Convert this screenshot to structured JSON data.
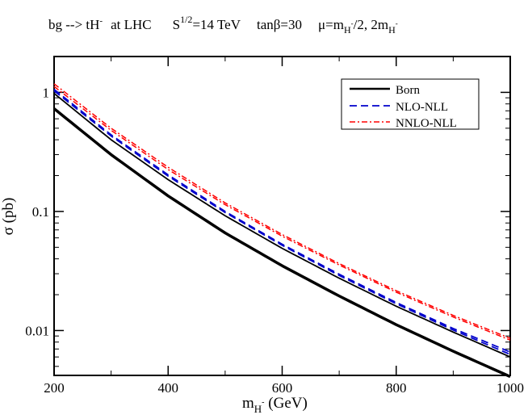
{
  "chart_data": {
    "type": "line",
    "title": {
      "process": "bg --> tH",
      "process_sup": "-",
      "collider": "at  LHC",
      "energy_base": "S",
      "energy_sup": "1/2",
      "energy_value": "=14 TeV",
      "tanb": "tanβ=30",
      "scale_a": "μ=m",
      "scale_a_sub": "H",
      "scale_a_subsup": "-",
      "scale_b": "/2, 2m",
      "scale_b_sub": "H",
      "scale_b_subsup": "-"
    },
    "xlabel": {
      "base": "m",
      "sub": "H",
      "subsup": "-",
      "unit": " (GeV)"
    },
    "ylabel": "σ  (pb)",
    "x_scale": "linear",
    "y_scale": "log",
    "xlim": [
      200,
      1000
    ],
    "ylim": [
      0.0042,
      2.0
    ],
    "x_ticks": [
      200,
      400,
      600,
      800,
      1000
    ],
    "x_tick_labels": [
      "200",
      "400",
      "600",
      "800",
      "1000"
    ],
    "y_ticks": [
      0.01,
      0.1,
      1
    ],
    "y_tick_labels": [
      "0.01",
      "0.1",
      "1"
    ],
    "legend_position": "top-right",
    "x": [
      200,
      300,
      400,
      500,
      600,
      700,
      800,
      900,
      1000
    ],
    "series": [
      {
        "name": "Born",
        "scale": "m_H/2",
        "legend": "Born",
        "color": "#000000",
        "style": "solid-thick",
        "values": [
          0.73,
          0.3,
          0.135,
          0.066,
          0.035,
          0.0195,
          0.0112,
          0.0067,
          0.0041
        ]
      },
      {
        "name": "Born",
        "scale": "2m_H",
        "legend": "",
        "color": "#000000",
        "style": "solid",
        "values": [
          0.98,
          0.4,
          0.185,
          0.092,
          0.049,
          0.0275,
          0.016,
          0.0097,
          0.006
        ]
      },
      {
        "name": "NLO-NLL",
        "scale": "m_H/2",
        "legend": "NLO-NLL",
        "color": "#0000cc",
        "style": "dashed",
        "values": [
          1.03,
          0.43,
          0.198,
          0.098,
          0.052,
          0.029,
          0.0168,
          0.0101,
          0.0063
        ]
      },
      {
        "name": "NLO-NLL",
        "scale": "2m_H",
        "legend": "",
        "color": "#0000cc",
        "style": "dashed",
        "values": [
          1.06,
          0.44,
          0.203,
          0.1,
          0.053,
          0.0297,
          0.0172,
          0.0104,
          0.0066
        ]
      },
      {
        "name": "NNLO-NLL",
        "scale": "m_H/2",
        "legend": "NNLO-NLL",
        "color": "#ff0000",
        "style": "dashdot",
        "values": [
          1.12,
          0.48,
          0.225,
          0.114,
          0.062,
          0.0355,
          0.021,
          0.013,
          0.0083
        ]
      },
      {
        "name": "NNLO-NLL",
        "scale": "2m_H",
        "legend": "",
        "color": "#ff0000",
        "style": "dashdot",
        "values": [
          1.18,
          0.5,
          0.235,
          0.118,
          0.064,
          0.0365,
          0.0216,
          0.0134,
          0.0086
        ]
      }
    ]
  }
}
